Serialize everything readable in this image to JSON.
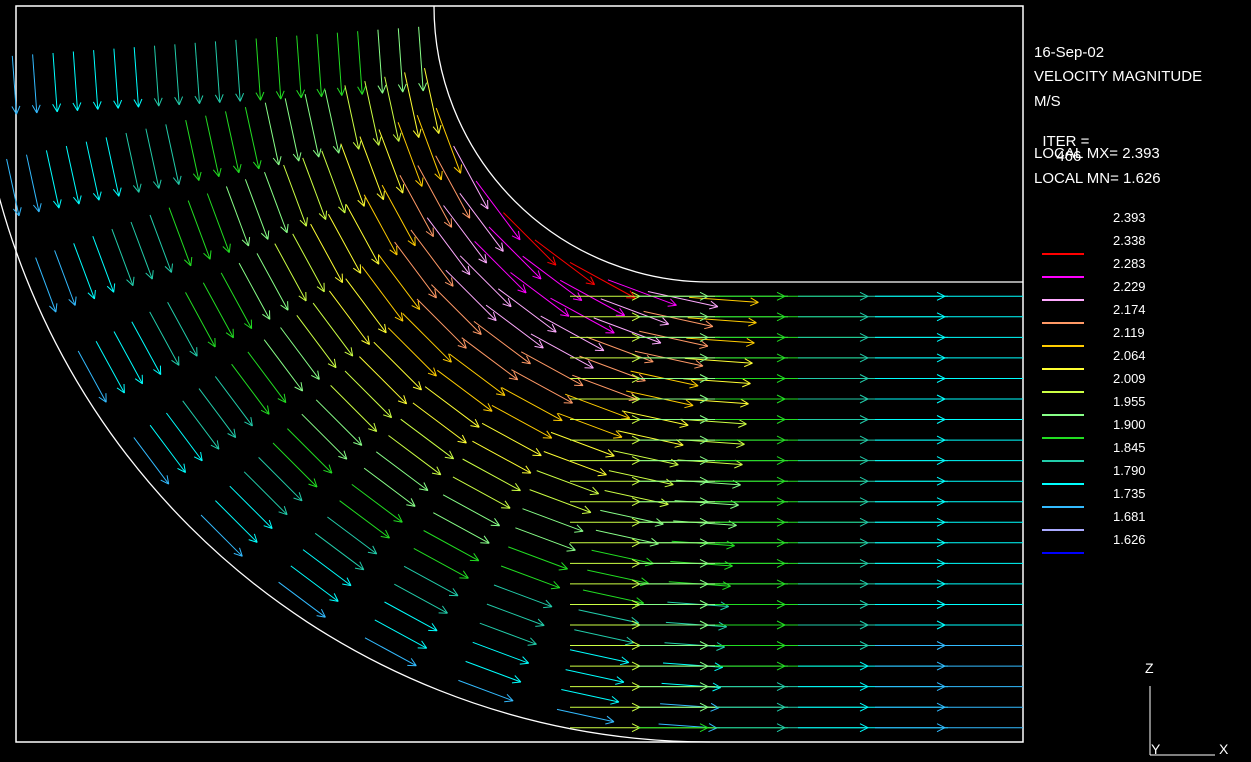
{
  "header": {
    "date": "16-Sep-02",
    "quantity": "VELOCITY MAGNITUDE",
    "units": "M/S",
    "iter_label": "ITER =",
    "iter_value": "466",
    "local_max": "LOCAL MX= 2.393",
    "local_min": "LOCAL MN= 1.626"
  },
  "legend": {
    "levels": [
      {
        "value": "2.393",
        "color": null
      },
      {
        "value": "2.338",
        "color": "#ff0000"
      },
      {
        "value": "2.283",
        "color": "#ff00ff"
      },
      {
        "value": "2.229",
        "color": "#ffaaff"
      },
      {
        "value": "2.174",
        "color": "#ff9966"
      },
      {
        "value": "2.119",
        "color": "#ffcc00"
      },
      {
        "value": "2.064",
        "color": "#ffff33"
      },
      {
        "value": "2.009",
        "color": "#ccff44"
      },
      {
        "value": "1.955",
        "color": "#88ff88"
      },
      {
        "value": "1.900",
        "color": "#22dd22"
      },
      {
        "value": "1.845",
        "color": "#22ccaa"
      },
      {
        "value": "1.790",
        "color": "#00ffff"
      },
      {
        "value": "1.735",
        "color": "#33bbff"
      },
      {
        "value": "1.681",
        "color": "#aaaaff"
      },
      {
        "value": "1.626",
        "color": "#0000ff"
      }
    ]
  },
  "axes": {
    "z": "Z",
    "y": "Y",
    "x": "X"
  }
}
